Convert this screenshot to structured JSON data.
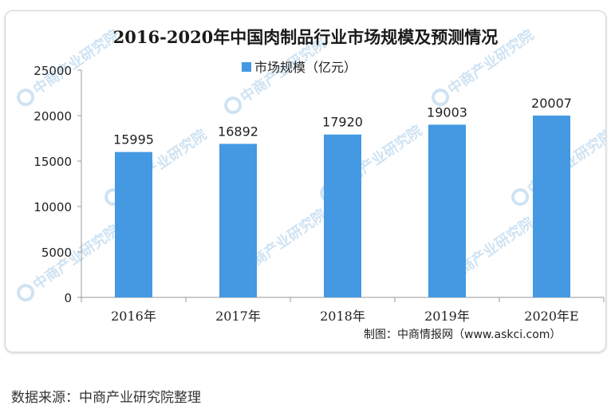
{
  "chart_data": {
    "type": "bar",
    "title": "2016-2020年中国肉制品行业市场规模及预测情况",
    "legend": "top-center",
    "series": [
      {
        "name": "市场规模（亿元）",
        "values": [
          15995,
          16892,
          17920,
          19003,
          20007
        ]
      }
    ],
    "categories": [
      "2016年",
      "2017年",
      "2018年",
      "2019年",
      "2020年E"
    ],
    "data_labels": [
      "15995",
      "16892",
      "17920",
      "19003",
      "20007"
    ],
    "y_ticks": [
      "0",
      "5000",
      "10000",
      "15000",
      "20000",
      "25000"
    ],
    "y_tick_values": [
      0,
      5000,
      10000,
      15000,
      20000,
      25000
    ],
    "ylim": [
      0,
      25000
    ],
    "grid": false,
    "bar_color": "#4499e2",
    "credit": "制图：中商情报网（www.askci.com）",
    "watermark": "中商产业研究院"
  },
  "footer": {
    "source": "数据来源：中商产业研究院整理"
  }
}
